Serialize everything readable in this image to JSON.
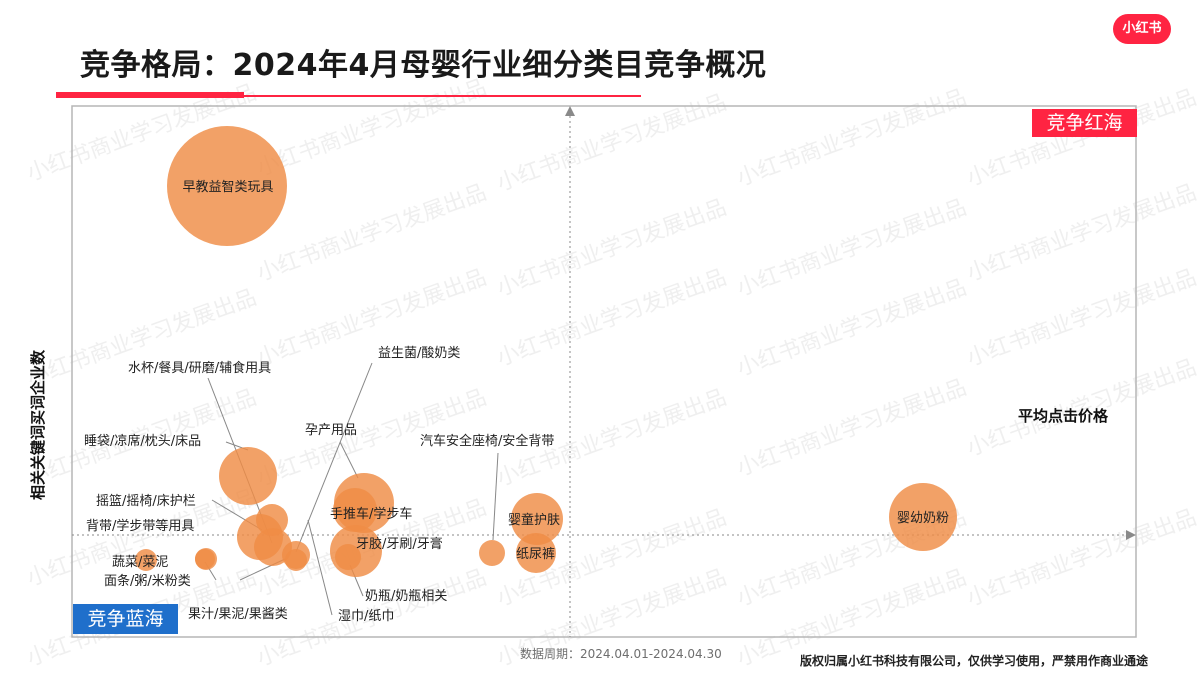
{
  "header": {
    "title": "竞争格局：2024年4月母婴行业细分类目竞争概况",
    "logo": "小红书"
  },
  "watermark": "小红书商业学习发展出品",
  "chart_data": {
    "type": "scatter",
    "title": "竞争格局：2024年4月母婴行业细分类目竞争概况",
    "xlabel": "平均点击价格",
    "ylabel": "相关关键词买词企业数",
    "quadrant_labels": {
      "top_right": "竞争红海",
      "bottom_left": "竞争蓝海"
    },
    "bubble_color": "#ef8c45",
    "points": [
      {
        "name": "早教益智类玩具",
        "size": 60
      },
      {
        "name": "婴幼奶粉",
        "size": 34
      },
      {
        "name": "睡袋/凉席/枕头/床品",
        "size": 29
      },
      {
        "name": "孕产用品",
        "size": 30
      },
      {
        "name": "手推车/学步车",
        "size": 22
      },
      {
        "name": "婴童护肤",
        "size": 26
      },
      {
        "name": "纸尿裤",
        "size": 20
      },
      {
        "name": "牙胶/牙刷/牙膏",
        "size": 26
      },
      {
        "name": "汽车安全座椅/安全背带",
        "size": 13
      },
      {
        "name": "摇篮/摇椅/床护栏",
        "size": 16
      },
      {
        "name": "背带/学步带等用具",
        "size": 23
      },
      {
        "name": "水杯/餐具/研磨/辅食用具",
        "size": 19
      },
      {
        "name": "益生菌/酸奶类",
        "size": 14
      },
      {
        "name": "湿巾/纸巾",
        "size": 11
      },
      {
        "name": "奶瓶/奶瓶相关",
        "size": 13
      },
      {
        "name": "果汁/果泥/果酱类",
        "size": 11
      },
      {
        "name": "面条/粥/米粉类",
        "size": 10
      },
      {
        "name": "蔬菜/菜泥",
        "size": 11
      }
    ],
    "reference_lines": "dotted lines at average x and average y"
  },
  "footer": {
    "period": "数据周期：2024.04.01-2024.04.30",
    "copyright": "版权归属小红书科技有限公司，仅供学习使用，严禁用作商业通途"
  }
}
